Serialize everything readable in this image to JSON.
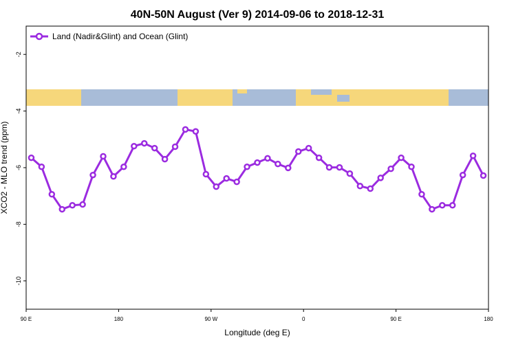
{
  "chart_data": {
    "type": "line",
    "title": "40N-50N August (Ver 9)   2014-09-06 to 2018-12-31",
    "x_label": "Longitude (deg E)",
    "y_label": "XCO2 - MLO trend (ppm)",
    "x": [
      95,
      105,
      115,
      125,
      135,
      145,
      155,
      165,
      175,
      185,
      195,
      205,
      215,
      225,
      235,
      245,
      255,
      265,
      275,
      285,
      295,
      305,
      315,
      325,
      335,
      345,
      355,
      365,
      375,
      385,
      395,
      405,
      415,
      425,
      435,
      445,
      455,
      465,
      475,
      485,
      495,
      505,
      515,
      525,
      535
    ],
    "series": [
      {
        "name": "Land (Nadir&Glint) and Ocean (Glint)",
        "color": "#9b2be0",
        "values": [
          -5.65,
          -5.97,
          -6.94,
          -7.47,
          -7.33,
          -7.3,
          -6.26,
          -5.6,
          -6.31,
          -5.97,
          -5.24,
          -5.14,
          -5.31,
          -5.7,
          -5.26,
          -4.65,
          -4.72,
          -6.23,
          -6.67,
          -6.38,
          -6.5,
          -5.97,
          -5.82,
          -5.67,
          -5.87,
          -6.01,
          -5.43,
          -5.31,
          -5.65,
          -5.99,
          -5.99,
          -6.21,
          -6.65,
          -6.74,
          -6.36,
          -6.04,
          -5.65,
          -5.97,
          -6.94,
          -7.47,
          -7.33,
          -7.33,
          -6.26,
          -5.58,
          -6.28
        ]
      }
    ],
    "xlim": [
      90,
      540
    ],
    "xticks": [
      {
        "value": 90,
        "label": "90 E"
      },
      180,
      {
        "value": 270,
        "label": "90 W"
      },
      {
        "value": 360,
        "label": "0"
      },
      {
        "value": 450,
        "label": "90 E"
      },
      {
        "value": 540,
        "label": "180"
      }
    ],
    "ylim": [
      -11,
      -1
    ],
    "yticks": [
      -2,
      -4,
      -6,
      -8,
      -10
    ],
    "legend": "top-left"
  }
}
